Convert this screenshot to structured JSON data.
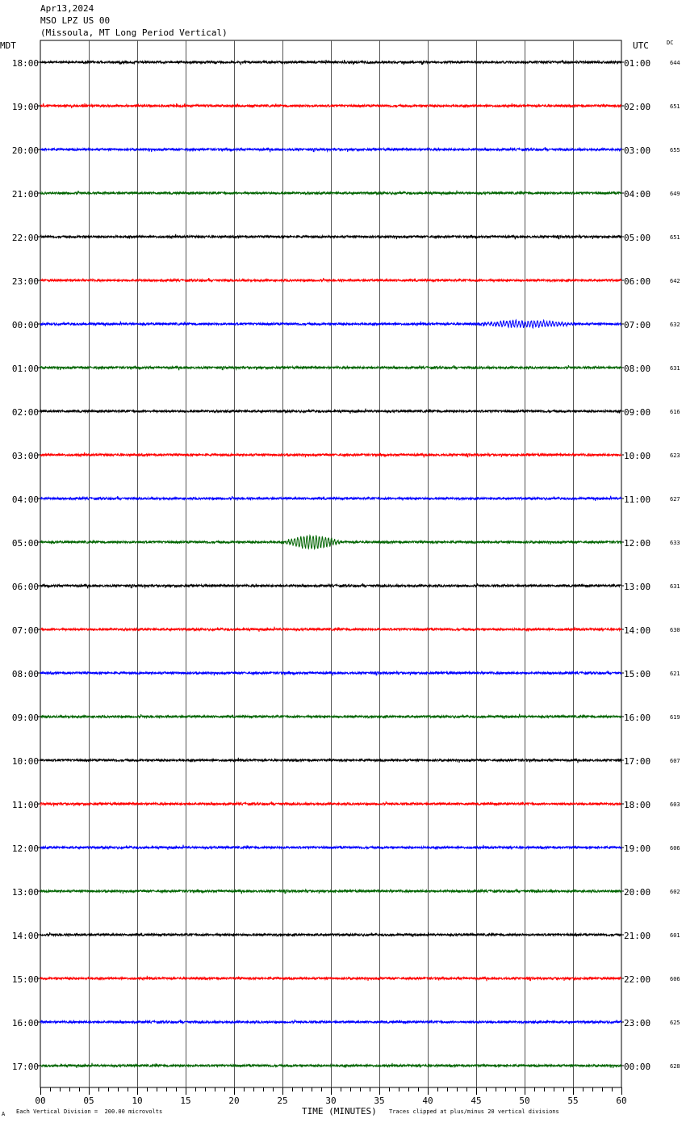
{
  "header": {
    "date": "Apr13,2024",
    "station": "MSO LPZ US 00",
    "description": "(Missoula, MT Long Period Vertical)"
  },
  "left_axis_label": "MDT",
  "right_axis_label": "UTC",
  "dc_label": "DC",
  "footer": {
    "scale_note": "Each Vertical Division =  200.00 microvolts",
    "xlabel": "TIME (MINUTES)",
    "clip_note": "Traces clipped at plus/minus 20 vertical divisions",
    "corner_mark": "A"
  },
  "colors": {
    "black": "#000000",
    "red": "#ff0000",
    "blue": "#0000ff",
    "green": "#006400"
  },
  "chart_data": {
    "type": "line",
    "title": "MSO LPZ US 00",
    "xlabel": "TIME (MINUTES)",
    "xlim": [
      0,
      60
    ],
    "x_ticks": [
      "00",
      "05",
      "10",
      "15",
      "20",
      "25",
      "30",
      "35",
      "40",
      "45",
      "50",
      "55",
      "60"
    ],
    "grid": true,
    "series": [
      {
        "mdt": "18:00",
        "utc": "01:00",
        "dc": "644",
        "color": "black"
      },
      {
        "mdt": "19:00",
        "utc": "02:00",
        "dc": "651",
        "color": "red"
      },
      {
        "mdt": "20:00",
        "utc": "03:00",
        "dc": "655",
        "color": "blue"
      },
      {
        "mdt": "21:00",
        "utc": "04:00",
        "dc": "649",
        "color": "green"
      },
      {
        "mdt": "22:00",
        "utc": "05:00",
        "dc": "651",
        "color": "black"
      },
      {
        "mdt": "23:00",
        "utc": "06:00",
        "dc": "642",
        "color": "red"
      },
      {
        "mdt": "00:00",
        "utc": "07:00",
        "dc": "632",
        "color": "blue",
        "event": {
          "start_min": 45,
          "end_min": 57,
          "amplitude": 4
        }
      },
      {
        "mdt": "01:00",
        "utc": "08:00",
        "dc": "631",
        "color": "green"
      },
      {
        "mdt": "02:00",
        "utc": "09:00",
        "dc": "616",
        "color": "black"
      },
      {
        "mdt": "03:00",
        "utc": "10:00",
        "dc": "623",
        "color": "red"
      },
      {
        "mdt": "04:00",
        "utc": "11:00",
        "dc": "627",
        "color": "blue"
      },
      {
        "mdt": "05:00",
        "utc": "12:00",
        "dc": "633",
        "color": "green",
        "event": {
          "start_min": 25,
          "end_min": 32,
          "amplitude": 8
        }
      },
      {
        "mdt": "06:00",
        "utc": "13:00",
        "dc": "631",
        "color": "black"
      },
      {
        "mdt": "07:00",
        "utc": "14:00",
        "dc": "630",
        "color": "red"
      },
      {
        "mdt": "08:00",
        "utc": "15:00",
        "dc": "621",
        "color": "blue"
      },
      {
        "mdt": "09:00",
        "utc": "16:00",
        "dc": "619",
        "color": "green"
      },
      {
        "mdt": "10:00",
        "utc": "17:00",
        "dc": "607",
        "color": "black"
      },
      {
        "mdt": "11:00",
        "utc": "18:00",
        "dc": "603",
        "color": "red"
      },
      {
        "mdt": "12:00",
        "utc": "19:00",
        "dc": "606",
        "color": "blue"
      },
      {
        "mdt": "13:00",
        "utc": "20:00",
        "dc": "602",
        "color": "green"
      },
      {
        "mdt": "14:00",
        "utc": "21:00",
        "dc": "601",
        "color": "black"
      },
      {
        "mdt": "15:00",
        "utc": "22:00",
        "dc": "606",
        "color": "red"
      },
      {
        "mdt": "16:00",
        "utc": "23:00",
        "dc": "625",
        "color": "blue"
      },
      {
        "mdt": "17:00",
        "utc": "00:00",
        "dc": "628",
        "color": "green"
      }
    ]
  }
}
